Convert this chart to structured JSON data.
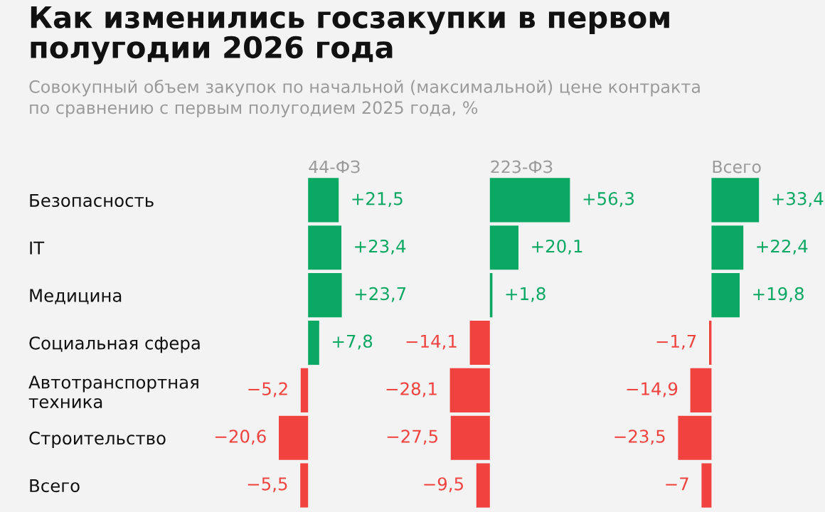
{
  "chart_data": [
    {
      "type": "other",
      "title": "Как изменились госзакупки в первом\nполугодии 2026 года",
      "subtitle": "Совокупный объем закупок по начальной (максимальной) цене контракта\nпо сравнению с первым полугодием 2025 года, %"
    },
    {
      "type": "bar",
      "orientation": "horizontal",
      "title": "44-ФЗ",
      "categories": [
        "Безопасность",
        "IT",
        "Медицина",
        "Социальная сфера",
        "Автотранспортная\nтехника",
        "Строительство",
        "Всего"
      ],
      "values": [
        21.5,
        23.4,
        23.7,
        7.8,
        -5.2,
        -20.6,
        -5.5
      ],
      "value_labels": [
        "+21,5",
        "+23,4",
        "+23,7",
        "+7,8",
        "−5,2",
        "−20,6",
        "−5,5"
      ],
      "colors": [
        "#0ba864",
        "#0ba864",
        "#0ba864",
        "#0ba864",
        "#f0433f",
        "#f0433f",
        "#f0433f"
      ],
      "tick_labels": "y"
    },
    {
      "type": "bar",
      "orientation": "horizontal",
      "title": "223-ФЗ",
      "values": [
        56.3,
        20.1,
        1.8,
        -14.1,
        -28.1,
        -27.5,
        -9.5
      ],
      "value_labels": [
        "+56,3",
        "+20,1",
        "+1,8",
        "−14,1",
        "−28,1",
        "−27,5",
        "−9,5"
      ],
      "colors": [
        "#0ba864",
        "#0ba864",
        "#0ba864",
        "#f0433f",
        "#f0433f",
        "#f0433f",
        "#f0433f"
      ],
      "tick_labels": false
    },
    {
      "type": "bar",
      "orientation": "horizontal",
      "title": "Всего",
      "values": [
        33.4,
        22.4,
        19.8,
        -1.7,
        -14.9,
        -23.5,
        -7
      ],
      "value_labels": [
        "+33,4",
        "+22,4",
        "+19,8",
        "−1,7",
        "−14,9",
        "−23,5",
        "−7"
      ],
      "colors": [
        "#0ba864",
        "#0ba864",
        "#0ba864",
        "#f0433f",
        "#f0433f",
        "#f0433f",
        "#f0433f"
      ],
      "tick_labels": false
    }
  ]
}
